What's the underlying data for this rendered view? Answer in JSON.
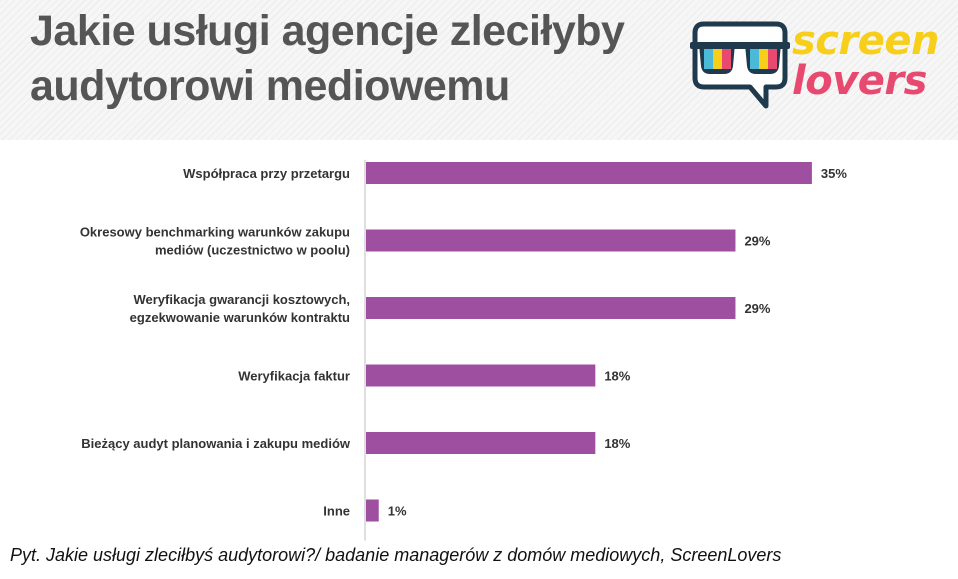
{
  "title_line1": "Jakie usługi agencje zleciłyby",
  "title_line2": "audytorowi mediowemu",
  "logo": {
    "line1": "screen",
    "line2": "lovers"
  },
  "footnote": "Pyt. Jakie usługi zleciłbyś audytorowi?/ badanie managerów z domów mediowych, ScreenLovers",
  "colors": {
    "bar": "#9e4f9f",
    "axis": "#bfbfbf",
    "label": "#333333"
  },
  "chart_data": {
    "type": "bar",
    "orientation": "horizontal",
    "categories": [
      [
        "Współpraca przy przetargu"
      ],
      [
        "Okresowy benchmarking warunków zakupu",
        "mediów (uczestnictwo w poolu)"
      ],
      [
        "Weryfikacja gwarancji kosztowych,",
        "egzekwowanie warunków kontraktu"
      ],
      [
        "Weryfikacja faktur"
      ],
      [
        "Bieżący audyt planowania i zakupu mediów"
      ],
      [
        "Inne"
      ]
    ],
    "values": [
      35,
      29,
      29,
      18,
      18,
      1
    ],
    "value_labels": [
      "35%",
      "29%",
      "29%",
      "18%",
      "18%",
      "1%"
    ],
    "unit": "%"
  }
}
